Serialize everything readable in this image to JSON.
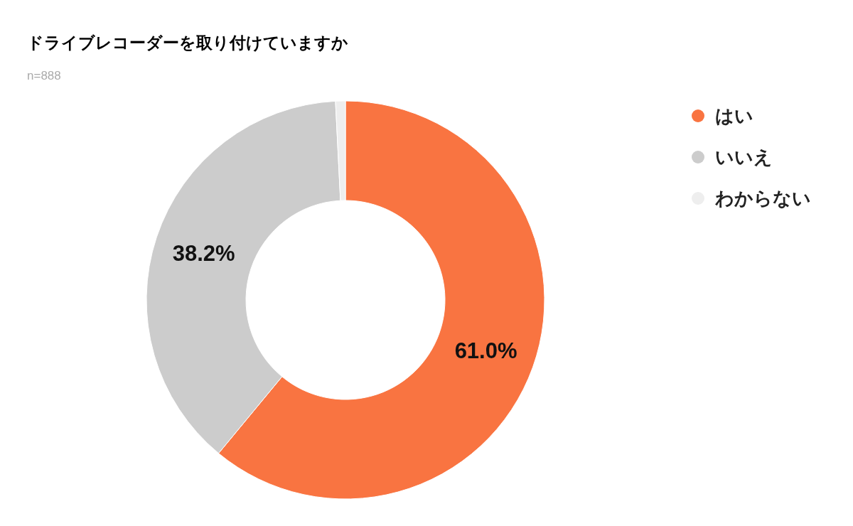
{
  "chart_data": {
    "type": "donut",
    "title": "ドライブレコーダーを取り付けていますか",
    "subtitle": "n=888",
    "categories": [
      "はい",
      "いいえ",
      "わからない"
    ],
    "values": [
      61.0,
      38.2,
      0.8
    ],
    "colors": [
      "#f97441",
      "#cccccc",
      "#eeeeee"
    ],
    "value_labels": [
      "61.0%",
      "38.2%",
      null
    ],
    "legend": "top right"
  }
}
